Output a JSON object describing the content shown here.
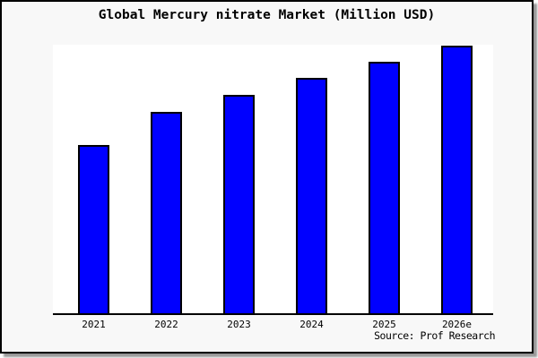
{
  "frame": {
    "background": "#f8f8f8",
    "border_color": "#000000",
    "shadow_color": "#989898"
  },
  "chart_data": {
    "type": "bar",
    "title": "Global Mercury nitrate Market (Million USD)",
    "categories": [
      "2021",
      "2022",
      "2023",
      "2024",
      "2025",
      "2026e"
    ],
    "values": [
      63.0,
      75.4,
      81.6,
      87.8,
      94.0,
      100.0
    ],
    "ylim": [
      0,
      100
    ],
    "value_scale": "relative, 2026e bar = 100 (no y-axis ticks shown)",
    "unit": "Million USD",
    "xlabel": "",
    "ylabel": "",
    "grid": false,
    "legend": false,
    "source": "Source: Prof Research",
    "colors": {
      "bar_fill": "#0000ff",
      "bar_border": "#000000",
      "axis": "#000000",
      "plot_background": "#ffffff"
    }
  }
}
